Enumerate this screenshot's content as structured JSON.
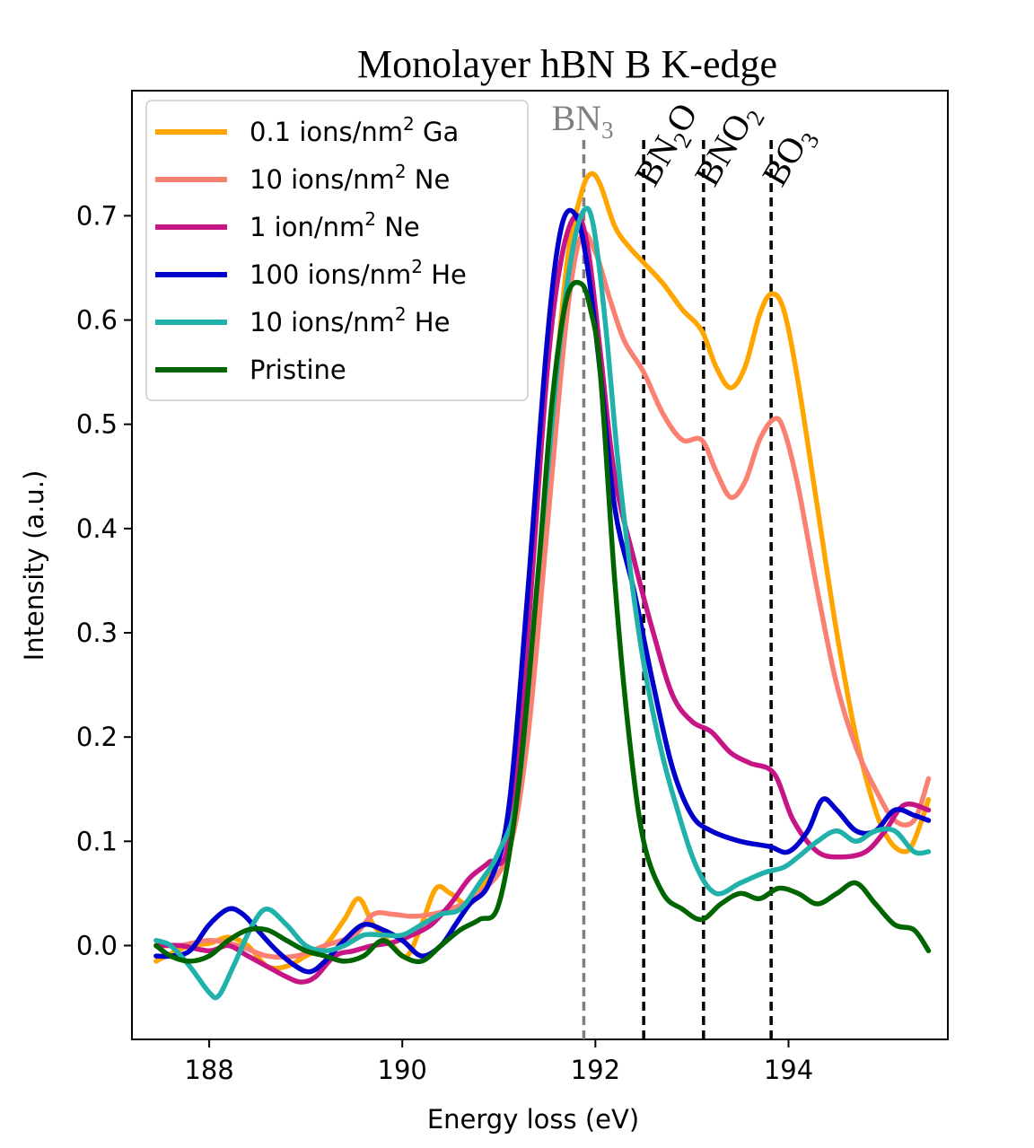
{
  "chart_data": {
    "type": "line",
    "title": "Monolayer hBN B K-edge",
    "xlabel": "Energy loss (eV)",
    "ylabel": "Intensity (a.u.)",
    "xlim": [
      187.2,
      195.65
    ],
    "ylim": [
      -0.09,
      0.82
    ],
    "xticks": [
      {
        "value": 188,
        "label": "188"
      },
      {
        "value": 190,
        "label": "190"
      },
      {
        "value": 192,
        "label": "192"
      },
      {
        "value": 194,
        "label": "194"
      }
    ],
    "yticks": [
      {
        "value": 0.0,
        "label": "0.0"
      },
      {
        "value": 0.1,
        "label": "0.1"
      },
      {
        "value": 0.2,
        "label": "0.2"
      },
      {
        "value": 0.3,
        "label": "0.3"
      },
      {
        "value": 0.4,
        "label": "0.4"
      },
      {
        "value": 0.5,
        "label": "0.5"
      },
      {
        "value": 0.6,
        "label": "0.6"
      },
      {
        "value": 0.7,
        "label": "0.7"
      }
    ],
    "legend_position": "upper-left",
    "series": [
      {
        "name": "0.1 ions/nm² Ga",
        "label_base": "0.1 ions/nm",
        "label_sup": "2",
        "label_tail": " Ga",
        "color": "#FFA500",
        "x": [
          187.45,
          187.6,
          187.8,
          188.0,
          188.2,
          188.4,
          188.6,
          188.8,
          189.0,
          189.2,
          189.4,
          189.55,
          189.7,
          189.9,
          190.05,
          190.2,
          190.35,
          190.5,
          190.7,
          190.9,
          191.1,
          191.3,
          191.5,
          191.7,
          191.85,
          191.95,
          192.05,
          192.2,
          192.35,
          192.5,
          192.7,
          192.9,
          193.1,
          193.25,
          193.4,
          193.55,
          193.7,
          193.82,
          193.95,
          194.1,
          194.3,
          194.5,
          194.7,
          194.9,
          195.05,
          195.2,
          195.3,
          195.45
        ],
        "y": [
          -0.015,
          -0.008,
          0.0,
          0.002,
          0.008,
          0.0,
          -0.02,
          -0.02,
          -0.01,
          0.0,
          0.025,
          0.045,
          0.02,
          0.0,
          -0.01,
          0.02,
          0.055,
          0.05,
          0.04,
          0.07,
          0.12,
          0.25,
          0.45,
          0.65,
          0.72,
          0.74,
          0.73,
          0.69,
          0.67,
          0.655,
          0.635,
          0.61,
          0.59,
          0.555,
          0.535,
          0.555,
          0.605,
          0.625,
          0.61,
          0.54,
          0.42,
          0.3,
          0.2,
          0.13,
          0.1,
          0.09,
          0.1,
          0.14
        ]
      },
      {
        "name": "10 ions/nm² Ne",
        "label_base": "10 ions/nm",
        "label_sup": "2",
        "label_tail": " Ne",
        "color": "#FA8072",
        "x": [
          187.45,
          187.7,
          188.0,
          188.3,
          188.6,
          188.9,
          189.2,
          189.5,
          189.7,
          189.9,
          190.1,
          190.3,
          190.5,
          190.8,
          191.1,
          191.3,
          191.5,
          191.7,
          191.85,
          192.0,
          192.15,
          192.3,
          192.5,
          192.7,
          192.9,
          193.1,
          193.25,
          193.4,
          193.55,
          193.7,
          193.85,
          193.95,
          194.1,
          194.3,
          194.5,
          194.7,
          194.9,
          195.1,
          195.3,
          195.45
        ],
        "y": [
          0.0,
          0.0,
          0.005,
          0.0,
          -0.01,
          -0.01,
          0.0,
          0.01,
          0.03,
          0.03,
          0.028,
          0.03,
          0.035,
          0.05,
          0.09,
          0.2,
          0.4,
          0.6,
          0.68,
          0.665,
          0.62,
          0.58,
          0.55,
          0.51,
          0.485,
          0.485,
          0.455,
          0.43,
          0.445,
          0.485,
          0.505,
          0.495,
          0.44,
          0.34,
          0.25,
          0.19,
          0.15,
          0.12,
          0.12,
          0.16
        ]
      },
      {
        "name": "1 ion/nm² Ne",
        "label_base": "1 ion/nm",
        "label_sup": "2",
        "label_tail": " Ne",
        "color": "#C71585",
        "x": [
          187.45,
          187.7,
          188.0,
          188.2,
          188.4,
          188.6,
          188.8,
          188.95,
          189.1,
          189.3,
          189.5,
          189.7,
          189.9,
          190.1,
          190.3,
          190.5,
          190.7,
          190.9,
          191.1,
          191.3,
          191.5,
          191.65,
          191.8,
          191.92,
          192.05,
          192.2,
          192.4,
          192.6,
          192.8,
          193.0,
          193.2,
          193.4,
          193.6,
          193.85,
          194.05,
          194.3,
          194.55,
          194.8,
          195.0,
          195.2,
          195.45
        ],
        "y": [
          0.0,
          0.0,
          -0.005,
          0.0,
          -0.01,
          -0.02,
          -0.03,
          -0.035,
          -0.03,
          -0.01,
          -0.005,
          0.0,
          0.003,
          0.01,
          0.02,
          0.04,
          0.065,
          0.08,
          0.1,
          0.3,
          0.55,
          0.66,
          0.7,
          0.67,
          0.57,
          0.45,
          0.37,
          0.3,
          0.24,
          0.215,
          0.205,
          0.185,
          0.175,
          0.165,
          0.12,
          0.09,
          0.085,
          0.09,
          0.11,
          0.135,
          0.13
        ]
      },
      {
        "name": "100 ions/nm² He",
        "label_base": "100 ions/nm",
        "label_sup": "2",
        "label_tail": " He",
        "color": "#0000CD",
        "x": [
          187.45,
          187.6,
          187.8,
          188.0,
          188.2,
          188.35,
          188.5,
          188.7,
          188.9,
          189.05,
          189.2,
          189.4,
          189.6,
          189.8,
          190.0,
          190.2,
          190.4,
          190.55,
          190.7,
          190.9,
          191.1,
          191.3,
          191.5,
          191.65,
          191.8,
          191.92,
          192.05,
          192.2,
          192.4,
          192.6,
          192.8,
          193.0,
          193.2,
          193.5,
          193.8,
          194.0,
          194.2,
          194.35,
          194.5,
          194.7,
          194.9,
          195.1,
          195.3,
          195.45
        ],
        "y": [
          -0.01,
          -0.01,
          -0.005,
          0.02,
          0.035,
          0.03,
          0.015,
          -0.005,
          -0.02,
          -0.025,
          -0.015,
          0.005,
          0.02,
          0.015,
          0.005,
          -0.01,
          0.0,
          0.02,
          0.04,
          0.06,
          0.13,
          0.34,
          0.58,
          0.69,
          0.7,
          0.65,
          0.55,
          0.42,
          0.34,
          0.25,
          0.17,
          0.125,
          0.11,
          0.1,
          0.095,
          0.09,
          0.11,
          0.14,
          0.13,
          0.11,
          0.11,
          0.13,
          0.125,
          0.12
        ]
      },
      {
        "name": "10 ions/nm² He",
        "label_base": "10 ions/nm",
        "label_sup": "2",
        "label_tail": " He",
        "color": "#20B2AA",
        "x": [
          187.45,
          187.6,
          187.8,
          188.0,
          188.1,
          188.25,
          188.45,
          188.6,
          188.8,
          189.0,
          189.2,
          189.4,
          189.6,
          189.8,
          190.0,
          190.2,
          190.4,
          190.6,
          190.8,
          191.0,
          191.2,
          191.4,
          191.6,
          191.75,
          191.88,
          191.98,
          192.1,
          192.25,
          192.45,
          192.65,
          192.85,
          193.05,
          193.25,
          193.5,
          193.75,
          193.95,
          194.1,
          194.3,
          194.5,
          194.7,
          194.9,
          195.1,
          195.3,
          195.45
        ],
        "y": [
          0.005,
          0.0,
          -0.02,
          -0.045,
          -0.048,
          -0.02,
          0.02,
          0.035,
          0.02,
          0.0,
          -0.005,
          0.0,
          0.01,
          0.01,
          0.01,
          0.02,
          0.03,
          0.035,
          0.06,
          0.09,
          0.15,
          0.35,
          0.55,
          0.66,
          0.705,
          0.69,
          0.6,
          0.45,
          0.3,
          0.2,
          0.13,
          0.075,
          0.05,
          0.06,
          0.07,
          0.075,
          0.085,
          0.1,
          0.11,
          0.1,
          0.11,
          0.11,
          0.09,
          0.09
        ]
      },
      {
        "name": "Pristine",
        "label_base": "Pristine",
        "label_sup": "",
        "label_tail": "",
        "color": "#006400",
        "x": [
          187.45,
          187.6,
          187.8,
          188.0,
          188.2,
          188.4,
          188.6,
          188.8,
          189.0,
          189.2,
          189.4,
          189.6,
          189.8,
          190.0,
          190.2,
          190.4,
          190.6,
          190.8,
          191.0,
          191.2,
          191.4,
          191.55,
          191.7,
          191.85,
          191.95,
          192.05,
          192.2,
          192.35,
          192.5,
          192.7,
          192.9,
          193.1,
          193.3,
          193.5,
          193.7,
          193.9,
          194.1,
          194.3,
          194.5,
          194.7,
          194.9,
          195.1,
          195.3,
          195.45
        ],
        "y": [
          0.0,
          -0.01,
          -0.015,
          -0.01,
          0.005,
          0.015,
          0.015,
          0.005,
          -0.005,
          -0.01,
          -0.015,
          -0.01,
          0.005,
          -0.01,
          -0.015,
          0.0,
          0.015,
          0.025,
          0.04,
          0.15,
          0.35,
          0.52,
          0.62,
          0.635,
          0.61,
          0.55,
          0.35,
          0.2,
          0.1,
          0.05,
          0.035,
          0.025,
          0.04,
          0.05,
          0.045,
          0.055,
          0.05,
          0.04,
          0.05,
          0.06,
          0.04,
          0.02,
          0.015,
          -0.005
        ]
      }
    ],
    "vlines": [
      {
        "x": 191.88,
        "color": "#808080",
        "label": "BN",
        "sub": "3",
        "rotate": false
      },
      {
        "x": 192.5,
        "color": "#000000",
        "label": "BN",
        "sub": "2",
        "tail": "O",
        "rotate": true
      },
      {
        "x": 193.12,
        "color": "#000000",
        "label": "BNO",
        "sub": "2",
        "rotate": true
      },
      {
        "x": 193.82,
        "color": "#000000",
        "label": "BO",
        "sub": "3",
        "rotate": true
      }
    ]
  }
}
